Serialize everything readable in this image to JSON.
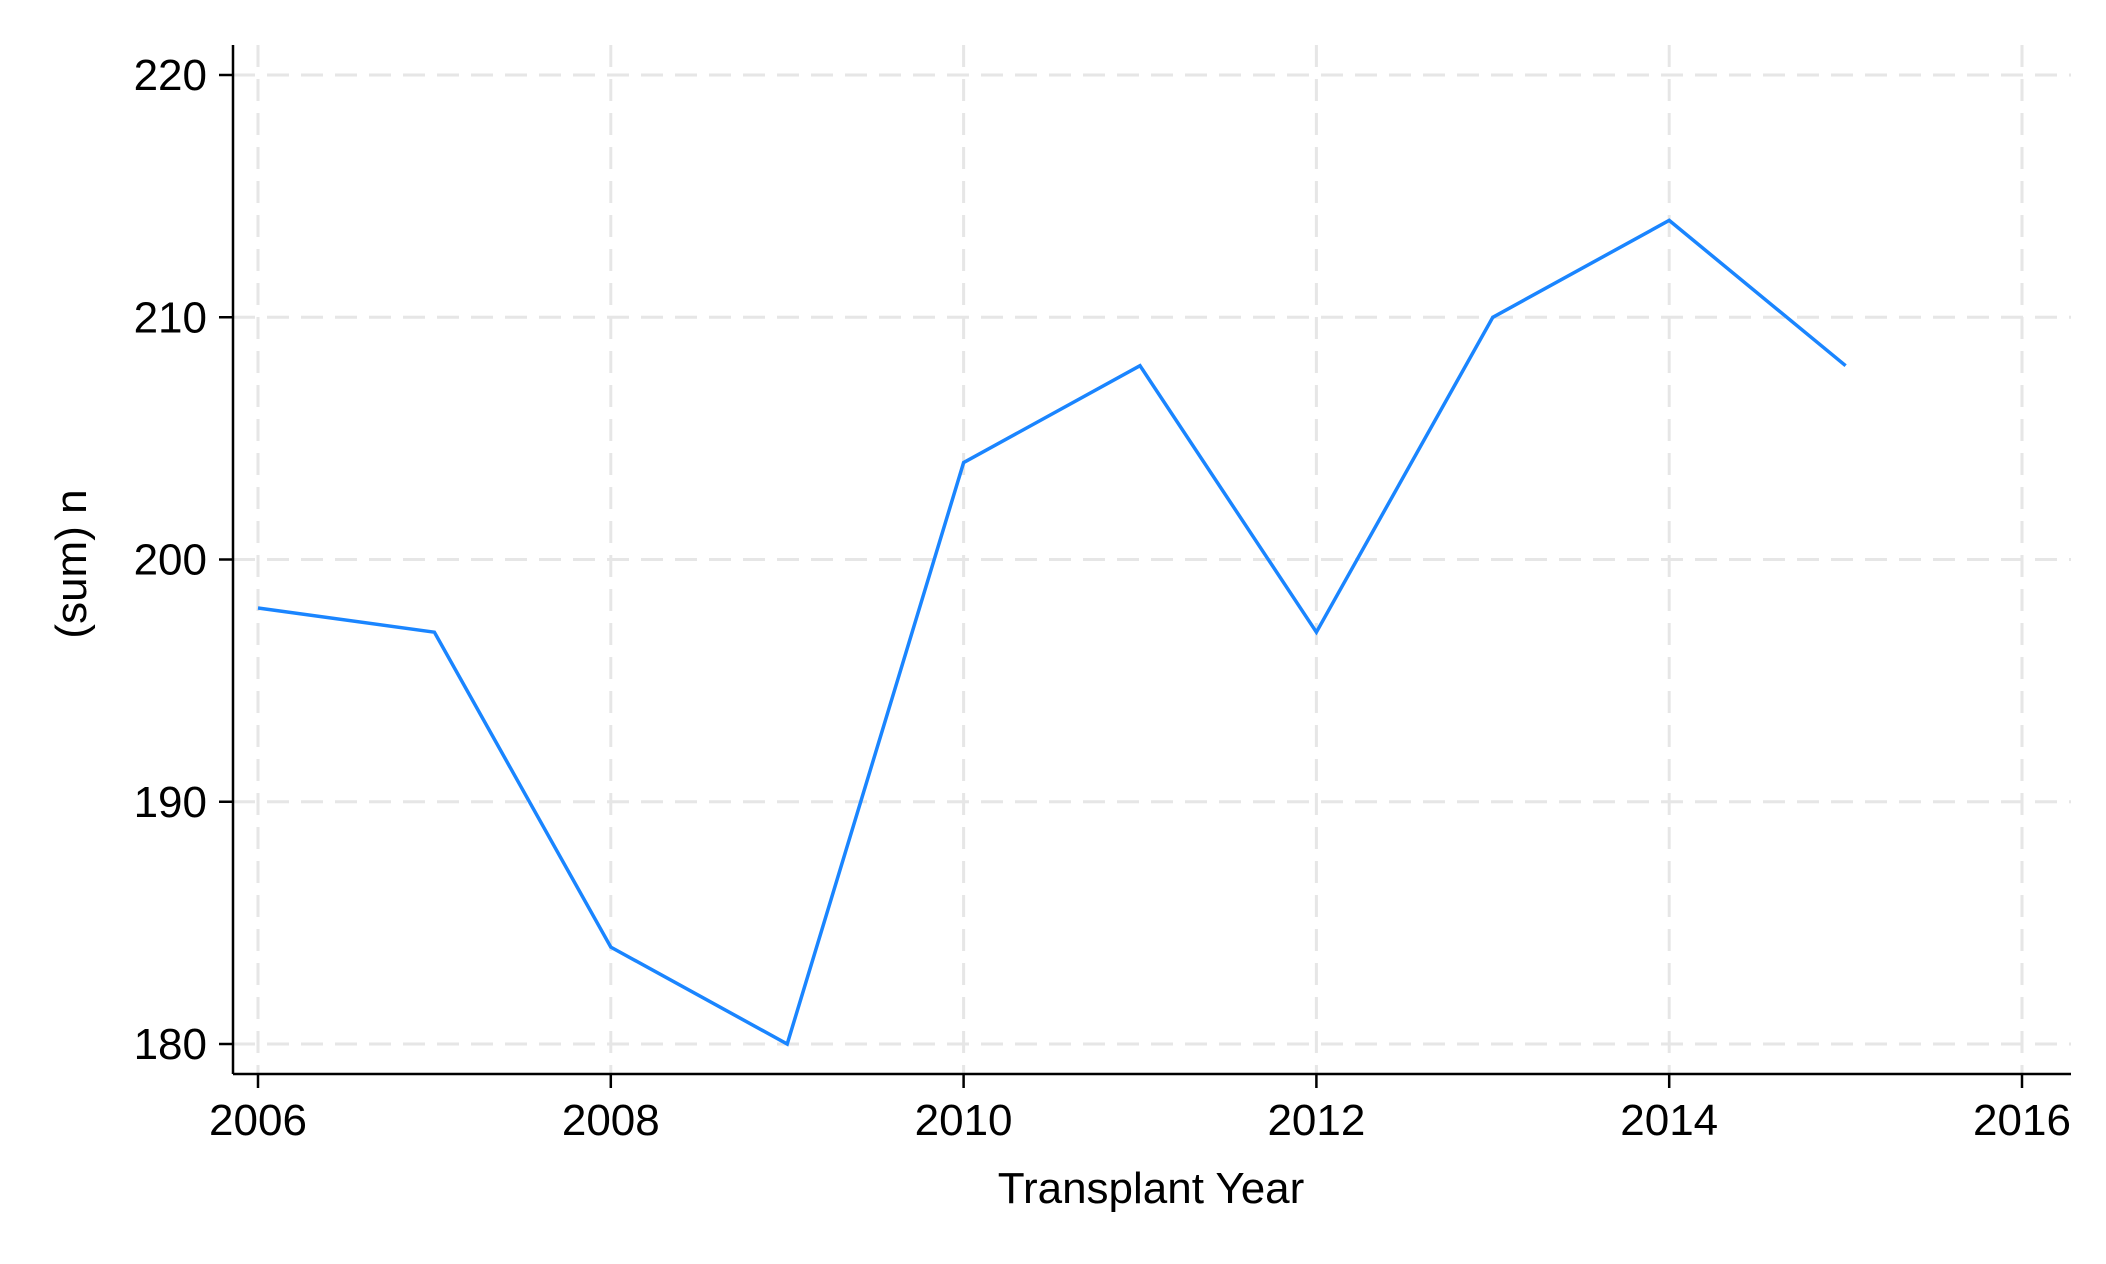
{
  "chart_data": {
    "type": "line",
    "title": "",
    "xlabel": "Transplant Year",
    "ylabel": "(sum) n",
    "xlim": [
      2006,
      2016
    ],
    "ylim": [
      180,
      220
    ],
    "x_ticks": [
      2006,
      2008,
      2010,
      2012,
      2014,
      2016
    ],
    "y_ticks": [
      180,
      190,
      200,
      210,
      220
    ],
    "x_tick_labels": [
      "2006",
      "2008",
      "2010",
      "2012",
      "2014",
      "2016"
    ],
    "y_tick_labels": [
      "180",
      "190",
      "200",
      "210",
      "220"
    ],
    "grid": true,
    "legend": "none",
    "series": [
      {
        "x": [
          2006,
          2007,
          2008,
          2009,
          2010,
          2011,
          2012,
          2013,
          2014,
          2015
        ],
        "values": [
          198,
          197,
          184,
          180,
          204,
          208,
          197,
          210,
          214,
          208
        ],
        "color": "#1a85ff"
      }
    ]
  }
}
